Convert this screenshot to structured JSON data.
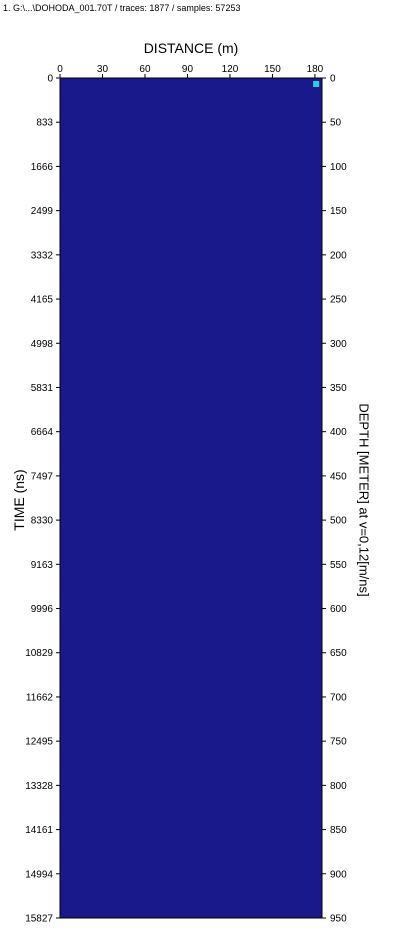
{
  "header": "1. G:\\...\\DOHODA_001.70T / traces: 1877 / samples: 57253",
  "chart_data": {
    "type": "heatmap",
    "title": "",
    "xlabel": "DISTANCE (m)",
    "ylabel": "TIME (ns)",
    "y2label": "DEPTH [METER] at v=0,12[m/ns]",
    "xticks": [
      0,
      30,
      60,
      90,
      120,
      150,
      180
    ],
    "xlim": [
      0,
      185
    ],
    "yticks_time": [
      0,
      833,
      1666,
      2499,
      3332,
      4165,
      4998,
      5831,
      6664,
      7497,
      8330,
      9163,
      9996,
      10829,
      11662,
      12495,
      13328,
      14161,
      14994,
      15827
    ],
    "ylim_time": [
      0,
      15827
    ],
    "yticks_depth": [
      0,
      50,
      100,
      150,
      200,
      250,
      300,
      350,
      400,
      450,
      500,
      550,
      600,
      650,
      700,
      750,
      800,
      850,
      900,
      950
    ],
    "ylim_depth": [
      0,
      950
    ],
    "colors": {
      "dark": "#1a1a8c",
      "magenta": "#c020c8",
      "red": "#e83050",
      "yellow": "#f4f23a",
      "green": "#3c9a3c",
      "lightgreen": "#b8e84a",
      "marker": "#2ad0e0"
    }
  }
}
